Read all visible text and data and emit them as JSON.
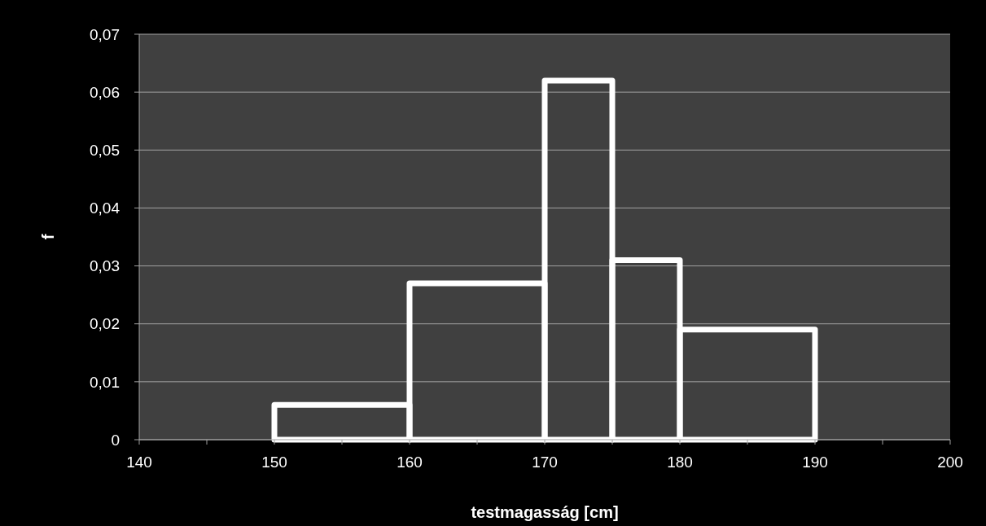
{
  "chart_data": {
    "type": "histogram",
    "xlabel": "testmagasság [cm]",
    "ylabel": "f",
    "bins": [
      150,
      160,
      170,
      175,
      180,
      190
    ],
    "values": [
      0.006,
      0.027,
      0.062,
      0.031,
      0.019
    ],
    "color": "#ffffff",
    "xlim": [
      140,
      200
    ],
    "xticks": [
      140,
      {
        "value": 145,
        "label": null
      },
      150,
      {
        "value": 155,
        "label": null
      },
      160,
      {
        "value": 165,
        "label": null
      },
      170,
      {
        "value": 175,
        "label": null
      },
      180,
      {
        "value": 185,
        "label": null
      },
      190,
      {
        "value": 195,
        "label": null
      },
      200
    ],
    "ylim": [
      0,
      0.07
    ],
    "yticks": [
      {
        "value": 0,
        "label": "0"
      },
      {
        "value": 0.01,
        "label": "0,01"
      },
      {
        "value": 0.02,
        "label": "0,02"
      },
      {
        "value": 0.03,
        "label": "0,03"
      },
      {
        "value": 0.04,
        "label": "0,04"
      },
      {
        "value": 0.05,
        "label": "0,05"
      },
      {
        "value": 0.06,
        "label": "0,06"
      },
      {
        "value": 0.07,
        "label": "0,07"
      }
    ],
    "grid": "y"
  }
}
